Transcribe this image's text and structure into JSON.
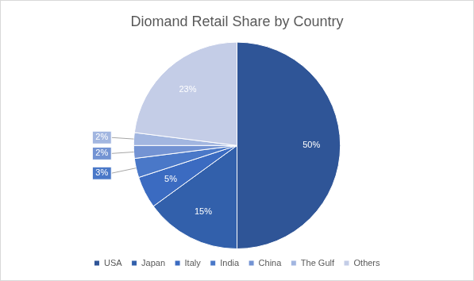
{
  "chart_data": {
    "type": "pie",
    "title": "Diomand Retail Share by Country",
    "categories": [
      "USA",
      "Japan",
      "Italy",
      "India",
      "China",
      "The Gulf",
      "Others"
    ],
    "values": [
      50,
      15,
      5,
      3,
      2,
      2,
      23
    ],
    "value_labels": [
      "50%",
      "15%",
      "5%",
      "3%",
      "2%",
      "2%",
      "23%"
    ],
    "colors": [
      "#2f5597",
      "#3260ab",
      "#3b6bc1",
      "#4a78c8",
      "#7393d3",
      "#a2b6e0",
      "#c4cde7"
    ],
    "data_labels": true,
    "legend": "bottom"
  }
}
